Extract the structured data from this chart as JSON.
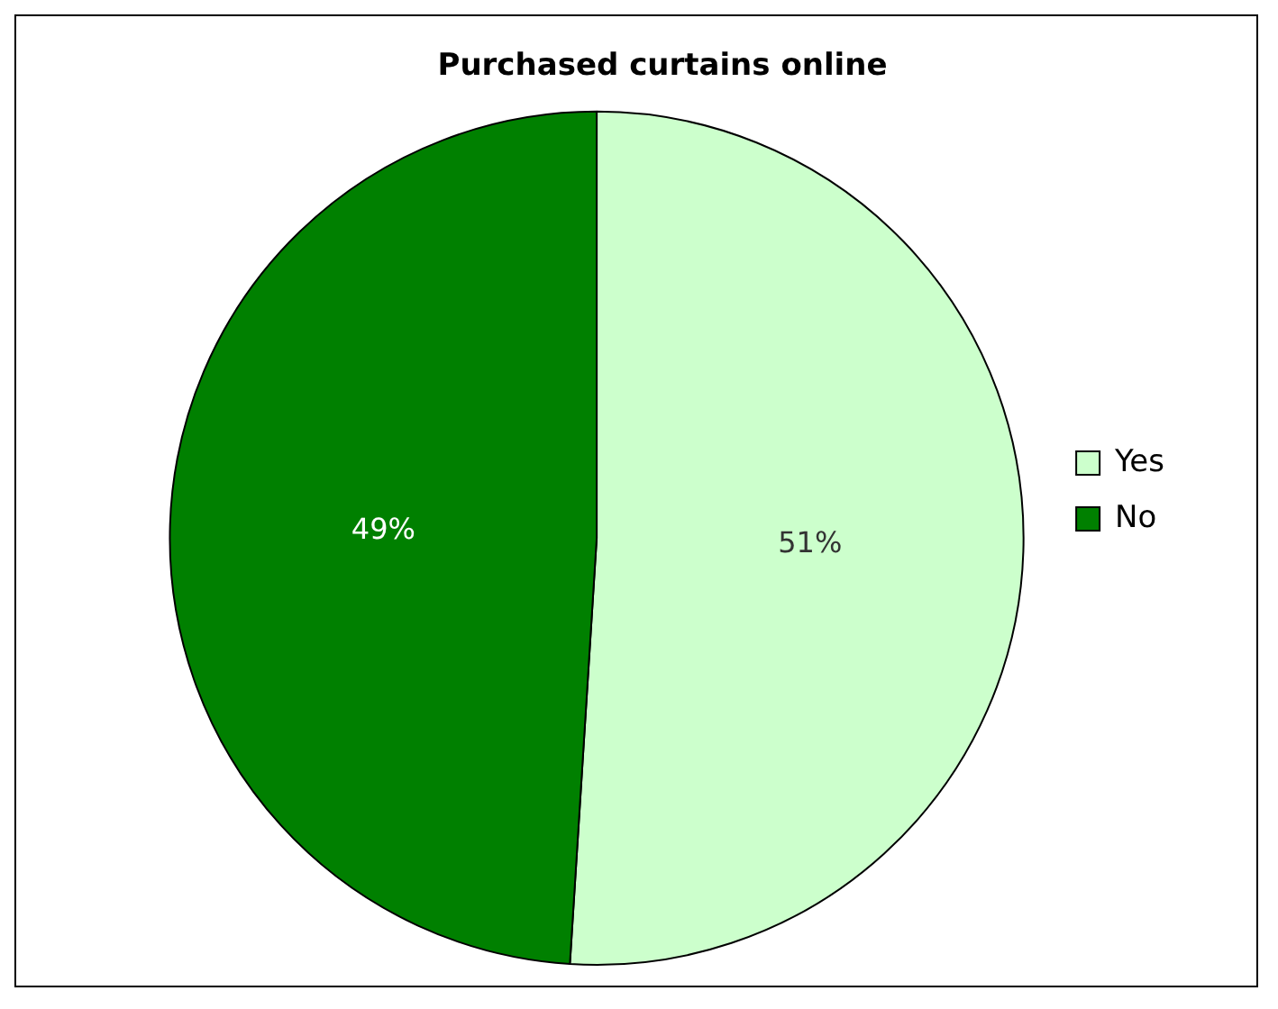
{
  "chart_data": {
    "type": "pie",
    "title": "Purchased curtains online",
    "categories": [
      "Yes",
      "No"
    ],
    "values": [
      51,
      49
    ],
    "colors": [
      "#ccffcc",
      "#008000"
    ],
    "value_labels": [
      "51%",
      "49%"
    ],
    "legend": "right"
  }
}
